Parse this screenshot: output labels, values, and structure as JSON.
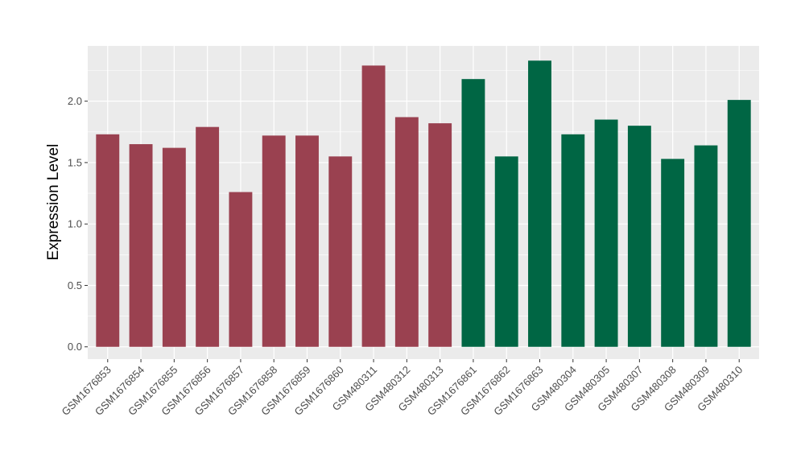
{
  "chart_data": {
    "type": "bar",
    "title": "",
    "xlabel": "",
    "ylabel": "Expression Level",
    "ylim": [
      -0.1,
      2.45
    ],
    "yticks": [
      0.0,
      0.5,
      1.0,
      1.5,
      2.0
    ],
    "ytick_labels": [
      "0.0",
      "0.5",
      "1.0",
      "1.5",
      "2.0"
    ],
    "grid": true,
    "legend": "none",
    "colors": {
      "group_a": "#9a4150",
      "group_b": "#006644",
      "panel_background": "#ebebeb",
      "gridline": "#ffffff",
      "tick_text": "#4d4d4d"
    },
    "categories": [
      "GSM1676853",
      "GSM1676854",
      "GSM1676855",
      "GSM1676856",
      "GSM1676857",
      "GSM1676858",
      "GSM1676859",
      "GSM1676860",
      "GSM480311",
      "GSM480312",
      "GSM480313",
      "GSM1676861",
      "GSM1676862",
      "GSM1676863",
      "GSM480304",
      "GSM480305",
      "GSM480307",
      "GSM480308",
      "GSM480309",
      "GSM480310"
    ],
    "values": [
      1.73,
      1.65,
      1.62,
      1.79,
      1.26,
      1.72,
      1.72,
      1.55,
      2.29,
      1.87,
      1.82,
      2.18,
      1.55,
      2.33,
      1.73,
      1.85,
      1.8,
      1.53,
      1.64,
      2.01
    ],
    "groups": [
      "a",
      "a",
      "a",
      "a",
      "a",
      "a",
      "a",
      "a",
      "a",
      "a",
      "a",
      "b",
      "b",
      "b",
      "b",
      "b",
      "b",
      "b",
      "b",
      "b"
    ]
  }
}
